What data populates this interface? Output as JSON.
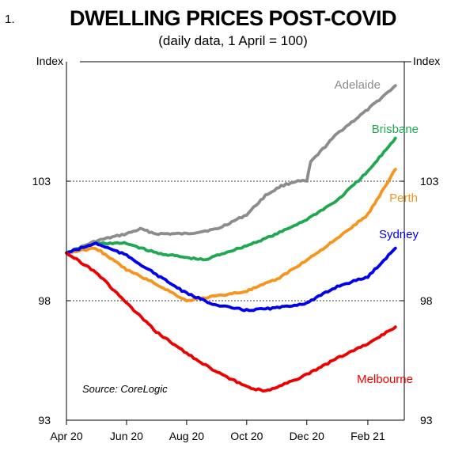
{
  "figure_number": "1.",
  "chart_data": {
    "type": "line",
    "title": "DWELLING PRICES POST-COVID",
    "subtitle": "(daily data, 1 April = 100)",
    "ylabel_left": "Index",
    "ylabel_right": "Index",
    "ylim": [
      93,
      108
    ],
    "yticks": [
      93,
      98,
      103
    ],
    "gridlines": [
      98,
      103
    ],
    "xlim": [
      "2020-04-01",
      "2021-03-10"
    ],
    "xticks": [
      {
        "date": "2020-04-01",
        "label": "Apr 20"
      },
      {
        "date": "2020-06-01",
        "label": "Jun 20"
      },
      {
        "date": "2020-08-01",
        "label": "Aug 20"
      },
      {
        "date": "2020-10-01",
        "label": "Oct 20"
      },
      {
        "date": "2020-12-01",
        "label": "Dec 20"
      },
      {
        "date": "2021-02-01",
        "label": "Feb 21"
      }
    ],
    "annotation": "Source: CoreLogic",
    "series": [
      {
        "name": "Adelaide",
        "color": "#8c8c8c",
        "x": [
          "2020-04-01",
          "2020-05-01",
          "2020-06-01",
          "2020-06-15",
          "2020-07-01",
          "2020-08-01",
          "2020-09-01",
          "2020-10-01",
          "2020-10-20",
          "2020-11-05",
          "2020-11-20",
          "2020-12-01",
          "2020-12-05",
          "2021-01-01",
          "2021-02-01",
          "2021-03-01"
        ],
        "values": [
          100.0,
          100.5,
          100.8,
          101.0,
          100.8,
          100.8,
          101.0,
          101.6,
          102.4,
          102.8,
          103.0,
          103.0,
          103.8,
          105.0,
          106.0,
          107.0
        ]
      },
      {
        "name": "Brisbane",
        "color": "#1fa84f",
        "x": [
          "2020-04-01",
          "2020-05-01",
          "2020-06-01",
          "2020-07-01",
          "2020-08-01",
          "2020-08-20",
          "2020-09-01",
          "2020-10-01",
          "2020-11-01",
          "2020-12-01",
          "2021-01-01",
          "2021-02-01",
          "2021-03-01"
        ],
        "values": [
          100.0,
          100.4,
          100.4,
          100.0,
          99.8,
          99.7,
          99.9,
          100.3,
          100.8,
          101.4,
          102.2,
          103.4,
          104.8
        ]
      },
      {
        "name": "Perth",
        "color": "#f7941d",
        "x": [
          "2020-04-01",
          "2020-05-01",
          "2020-06-01",
          "2020-07-01",
          "2020-08-01",
          "2020-09-01",
          "2020-10-01",
          "2020-11-01",
          "2020-12-01",
          "2021-01-01",
          "2021-02-01",
          "2021-03-01"
        ],
        "values": [
          100.0,
          100.2,
          99.3,
          98.7,
          98.0,
          98.2,
          98.4,
          98.9,
          99.7,
          100.6,
          101.6,
          103.5
        ]
      },
      {
        "name": "Sydney",
        "color": "#0000ee",
        "x": [
          "2020-04-01",
          "2020-05-01",
          "2020-06-01",
          "2020-07-01",
          "2020-08-01",
          "2020-09-01",
          "2020-10-01",
          "2020-11-01",
          "2020-12-01",
          "2021-01-01",
          "2021-02-01",
          "2021-03-01"
        ],
        "values": [
          100.0,
          100.4,
          99.9,
          99.1,
          98.3,
          97.8,
          97.6,
          97.7,
          97.9,
          98.6,
          99.0,
          100.2
        ]
      },
      {
        "name": "Melbourne",
        "color": "#ee0000",
        "x": [
          "2020-04-01",
          "2020-05-01",
          "2020-06-01",
          "2020-07-01",
          "2020-08-01",
          "2020-09-01",
          "2020-10-01",
          "2020-10-20",
          "2020-11-01",
          "2020-12-01",
          "2021-01-01",
          "2021-02-01",
          "2021-03-01"
        ],
        "values": [
          100.0,
          99.2,
          97.9,
          96.7,
          95.8,
          95.0,
          94.4,
          94.2,
          94.4,
          94.9,
          95.6,
          96.2,
          96.9
        ]
      }
    ]
  }
}
